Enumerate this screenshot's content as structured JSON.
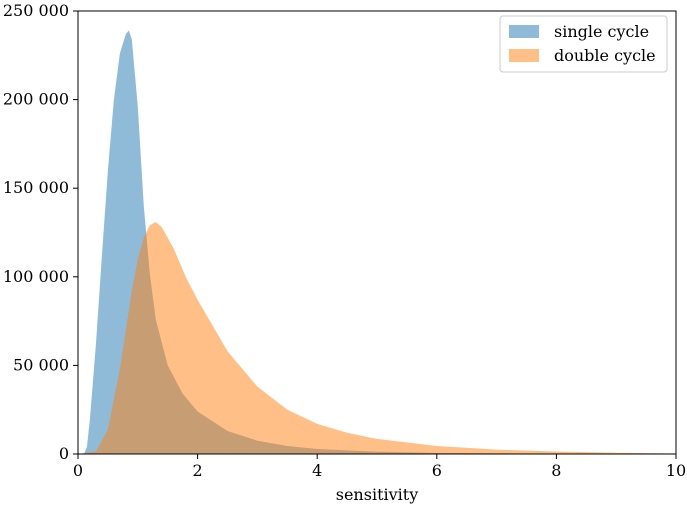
{
  "chart_data": {
    "type": "area",
    "title": "",
    "xlabel": "sensitivity",
    "ylabel": "",
    "xlim": [
      0,
      10
    ],
    "ylim": [
      0,
      250000
    ],
    "grid": false,
    "legend_position": "top-right",
    "x_ticks": [
      0,
      2,
      4,
      6,
      8,
      10
    ],
    "x_tick_labels": [
      "0",
      "2",
      "4",
      "6",
      "8",
      "10"
    ],
    "y_ticks": [
      0,
      50000,
      100000,
      150000,
      200000,
      250000
    ],
    "y_tick_labels": [
      "0",
      "50 000",
      "100 000",
      "150 000",
      "200 000",
      "250 000"
    ],
    "series": [
      {
        "name": "single cycle",
        "color": "#1f77b4",
        "opacity": 0.5,
        "x": [
          0.0,
          0.1,
          0.15,
          0.2,
          0.3,
          0.4,
          0.5,
          0.6,
          0.7,
          0.8,
          0.85,
          0.9,
          1.0,
          1.1,
          1.2,
          1.3,
          1.5,
          1.75,
          2.0,
          2.5,
          3.0,
          3.5,
          4.0,
          5.0,
          6.0,
          8.0,
          10.0
        ],
        "values": [
          0,
          0,
          4000,
          20000,
          62000,
          112000,
          160000,
          200000,
          226000,
          237000,
          239000,
          234000,
          196000,
          140000,
          102000,
          76000,
          50000,
          34000,
          24000,
          13000,
          7500,
          4500,
          2800,
          1300,
          600,
          150,
          0
        ]
      },
      {
        "name": "double cycle",
        "color": "#ff7f0e",
        "opacity": 0.5,
        "x": [
          0.0,
          0.3,
          0.5,
          0.7,
          0.9,
          1.0,
          1.1,
          1.2,
          1.3,
          1.4,
          1.6,
          1.8,
          2.0,
          2.5,
          3.0,
          3.5,
          4.0,
          4.5,
          5.0,
          6.0,
          7.0,
          8.0,
          9.0,
          10.0
        ],
        "values": [
          0,
          1500,
          14000,
          48000,
          92000,
          110000,
          122000,
          129000,
          131000,
          128000,
          116000,
          100000,
          87000,
          58000,
          38000,
          25000,
          17000,
          12000,
          8500,
          4500,
          2500,
          1400,
          700,
          300
        ]
      }
    ]
  }
}
